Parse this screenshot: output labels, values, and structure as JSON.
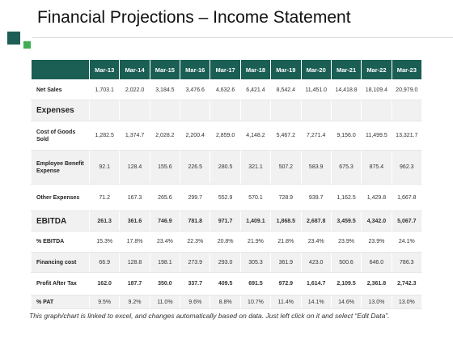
{
  "slide": {
    "title": "Financial Projections – Income Statement",
    "footnote": "This graph/chart is linked to excel, and changes automatically based on data. Just left click on it and select “Edit Data”."
  },
  "colors": {
    "header_bg": "#1a5e54",
    "accent_dark": "#1e5e56",
    "accent_green": "#3fae55",
    "row_grey": "#f1f1f1"
  },
  "table": {
    "columns": [
      "Mar-13",
      "Mar-14",
      "Mar-15",
      "Mar-16",
      "Mar-17",
      "Mar-18",
      "Mar-19",
      "Mar-20",
      "Mar-21",
      "Mar-22",
      "Mar-23"
    ],
    "rows": {
      "net_sales": {
        "label": "Net Sales",
        "values": [
          "1,703.1",
          "2,022.0",
          "3,184.5",
          "3,476.6",
          "4,632.6",
          "6,421.4",
          "8,542.4",
          "11,451.0",
          "14,418.8",
          "18,109.4",
          "20,979.0"
        ]
      },
      "expenses": {
        "label": "Expenses",
        "values": [
          "",
          "",
          "",
          "",
          "",
          "",
          "",
          "",
          "",
          "",
          ""
        ]
      },
      "cogs": {
        "label": "Cost of Goods Sold",
        "values": [
          "1,282.5",
          "1,374.7",
          "2,028.2",
          "2,200.4",
          "2,859.0",
          "4,148.2",
          "5,467.2",
          "7,271.4",
          "9,156.0",
          "11,499.5",
          "13,321.7"
        ]
      },
      "employee": {
        "label": "Employee Benefit Expense",
        "values": [
          "92.1",
          "128.4",
          "155.6",
          "226.5",
          "280.5",
          "321.1",
          "507.2",
          "583.9",
          "675.3",
          "875.4",
          "962.3"
        ]
      },
      "other": {
        "label": "Other Expenses",
        "values": [
          "71.2",
          "167.3",
          "265.6",
          "299.7",
          "552.9",
          "570.1",
          "728.9",
          "939.7",
          "1,162.5",
          "1,429.8",
          "1,667.8"
        ]
      },
      "ebitda": {
        "label": "EBITDA",
        "values": [
          "261.3",
          "361.6",
          "746.9",
          "781.8",
          "971.7",
          "1,409.1",
          "1,868.5",
          "2,687.8",
          "3,459.5",
          "4,342.0",
          "5,067.7"
        ]
      },
      "pct_ebitda": {
        "label": "% EBITDA",
        "values": [
          "15.3%",
          "17.8%",
          "23.4%",
          "22.3%",
          "20.8%",
          "21.9%",
          "21.8%",
          "23.4%",
          "23.9%",
          "23.9%",
          "24.1%"
        ]
      },
      "financing": {
        "label": "Financing cost",
        "values": [
          "66.9",
          "128.8",
          "198.1",
          "273.9",
          "293.0",
          "305.3",
          "361.9",
          "423.0",
          "500.6",
          "646.0",
          "786.3"
        ]
      },
      "pat": {
        "label": "Profit After Tax",
        "values": [
          "162.0",
          "187.7",
          "350.0",
          "337.7",
          "409.5",
          "691.5",
          "972.9",
          "1,614.7",
          "2,109.5",
          "2,361.8",
          "2,742.3"
        ]
      },
      "pct_pat": {
        "label": "% PAT",
        "values": [
          "9.5%",
          "9.2%",
          "11.0%",
          "9.6%",
          "8.8%",
          "10.7%",
          "11.4%",
          "14.1%",
          "14.6%",
          "13.0%",
          "13.0%"
        ]
      }
    }
  }
}
